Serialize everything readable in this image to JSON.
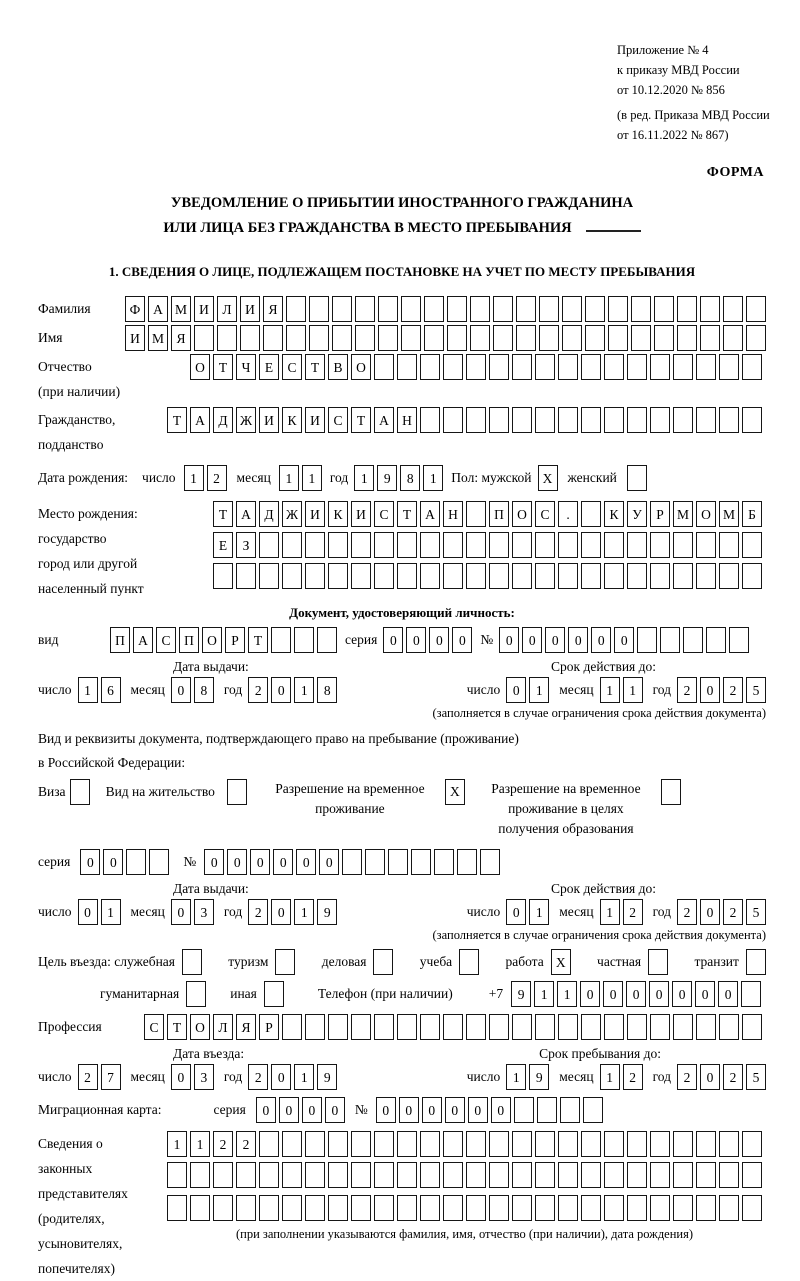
{
  "header": {
    "annex": [
      "Приложение № 4",
      "к приказу МВД России",
      "от 10.12.2020 № 856"
    ],
    "edition": [
      "(в ред. Приказа МВД России",
      "от 16.11.2022 № 867)"
    ],
    "forma": "ФОРМА",
    "title1": "УВЕДОМЛЕНИЕ О ПРИБЫТИИ ИНОСТРАННОГО ГРАЖДАНИНА",
    "title2": "ИЛИ ЛИЦА БЕЗ ГРАЖДАНСТВА В МЕСТО ПРЕБЫВАНИЯ",
    "section1": "1. СВЕДЕНИЯ О ЛИЦЕ, ПОДЛЕЖАЩЕМ ПОСТАНОВКЕ НА УЧЕТ ПО МЕСТУ ПРЕБЫВАНИЯ"
  },
  "labels": {
    "surname": "Фамилия",
    "given_name": "Имя",
    "patronymic": "Отчество",
    "patronymic_note": "(при наличии)",
    "citizenship1": "Гражданство,",
    "citizenship2": "подданство",
    "birth_date": "Дата рождения:",
    "day": "число",
    "month": "месяц",
    "year": "год",
    "sex_male": "Пол: мужской",
    "sex_female": "женский",
    "birthplace1": "Место рождения:",
    "birthplace2": "государство",
    "birthplace3": "город или другой",
    "birthplace4": "населенный пункт",
    "id_doc_header": "Документ, удостоверяющий личность:",
    "vid": "вид",
    "series": "серия",
    "number_sign": "№",
    "issue_date": "Дата выдачи:",
    "valid_until": "Срок действия до:",
    "validity_note": "(заполняется в случае ограничения срока действия документа)",
    "residence_line1": "Вид и реквизиты документа, подтверждающего право на пребывание (проживание)",
    "residence_line2": "в Российской Федерации:",
    "visa": "Виза",
    "residence_permit": "Вид на жительство",
    "temp_permit_l1": "Разрешение на временное",
    "temp_permit_l2": "проживание",
    "edu_permit_l1": "Разрешение на временное",
    "edu_permit_l2": "проживание в целях",
    "edu_permit_l3": "получения образования",
    "purpose_official": "Цель въезда: служебная",
    "tourism": "туризм",
    "business": "деловая",
    "study": "учеба",
    "work": "работа",
    "private": "частная",
    "transit": "транзит",
    "humanitarian": "гуманитарная",
    "other": "иная",
    "phone_label": "Телефон (при наличии)",
    "plus7": "+7",
    "profession": "Профессия",
    "entry_date_h": "Дата въезда:",
    "stay_until_h": "Срок пребывания до:",
    "migration_card": "Миграционная карта:",
    "rep1": "Сведения о",
    "rep2": "законных",
    "rep3": "представителях",
    "rep4": "(родителях,",
    "rep5": "усыновителях,",
    "rep6": "попечителях)",
    "rep_note": "(при заполнении указываются фамилия, имя, отчество (при наличии), дата рождения)"
  },
  "fields": {
    "surname": {
      "count": 28,
      "value": "ФАМИЛИЯ"
    },
    "given_name": {
      "count": 28,
      "value": "ИМЯ"
    },
    "patronymic": {
      "count": 25,
      "value": "ОТЧЕСТВО"
    },
    "citizenship": {
      "count": 26,
      "value": "ТАДЖИКИСТАН"
    },
    "birth_day": {
      "count": 2,
      "value": "12"
    },
    "birth_month": {
      "count": 2,
      "value": "11"
    },
    "birth_year": {
      "count": 4,
      "value": "1981"
    },
    "sex_male": {
      "count": 1,
      "value": "X"
    },
    "sex_female": {
      "count": 1,
      "value": ""
    },
    "birthplace_row1": {
      "count": 24,
      "value": "ТАДЖИКИСТАН ПОС. КУРМОМБ"
    },
    "birthplace_row2": {
      "count": 24,
      "value": "ЕЗ"
    },
    "birthplace_row3": {
      "count": 24,
      "value": ""
    },
    "id_type": {
      "count": 10,
      "value": "ПАСПОРТ"
    },
    "id_series": {
      "count": 4,
      "value": "0000"
    },
    "id_number": {
      "count": 11,
      "value": "000000"
    },
    "id_issue_day": {
      "count": 2,
      "value": "16"
    },
    "id_issue_month": {
      "count": 2,
      "value": "08"
    },
    "id_issue_year": {
      "count": 4,
      "value": "2018"
    },
    "id_valid_day": {
      "count": 2,
      "value": "01"
    },
    "id_valid_month": {
      "count": 2,
      "value": "11"
    },
    "id_valid_year": {
      "count": 4,
      "value": "2025"
    },
    "cb_visa": {
      "count": 1,
      "value": ""
    },
    "cb_residence_permit": {
      "count": 1,
      "value": ""
    },
    "cb_temp_permit": {
      "count": 1,
      "value": "X"
    },
    "cb_edu_permit": {
      "count": 1,
      "value": ""
    },
    "permit_series": {
      "count": 4,
      "value": "00"
    },
    "permit_number": {
      "count": 13,
      "value": "000000"
    },
    "permit_issue_day": {
      "count": 2,
      "value": "01"
    },
    "permit_issue_month": {
      "count": 2,
      "value": "03"
    },
    "permit_issue_year": {
      "count": 4,
      "value": "2019"
    },
    "permit_valid_day": {
      "count": 2,
      "value": "01"
    },
    "permit_valid_month": {
      "count": 2,
      "value": "12"
    },
    "permit_valid_year": {
      "count": 4,
      "value": "2025"
    },
    "cb_official": {
      "count": 1,
      "value": ""
    },
    "cb_tourism": {
      "count": 1,
      "value": ""
    },
    "cb_business": {
      "count": 1,
      "value": ""
    },
    "cb_study": {
      "count": 1,
      "value": ""
    },
    "cb_work": {
      "count": 1,
      "value": "X"
    },
    "cb_private": {
      "count": 1,
      "value": ""
    },
    "cb_transit": {
      "count": 1,
      "value": ""
    },
    "cb_humanitarian": {
      "count": 1,
      "value": ""
    },
    "cb_other": {
      "count": 1,
      "value": ""
    },
    "phone": {
      "count": 11,
      "value": "9110000000"
    },
    "profession": {
      "count": 27,
      "value": "СТОЛЯР"
    },
    "entry_day": {
      "count": 2,
      "value": "27"
    },
    "entry_month": {
      "count": 2,
      "value": "03"
    },
    "entry_year": {
      "count": 4,
      "value": "2019"
    },
    "stay_day": {
      "count": 2,
      "value": "19"
    },
    "stay_month": {
      "count": 2,
      "value": "12"
    },
    "stay_year": {
      "count": 4,
      "value": "2025"
    },
    "mig_series": {
      "count": 4,
      "value": "0000"
    },
    "mig_number": {
      "count": 10,
      "value": "000000"
    },
    "rep_row1": {
      "count": 26,
      "value": "1122"
    },
    "rep_row2": {
      "count": 26,
      "value": ""
    },
    "rep_row3": {
      "count": 26,
      "value": ""
    }
  }
}
